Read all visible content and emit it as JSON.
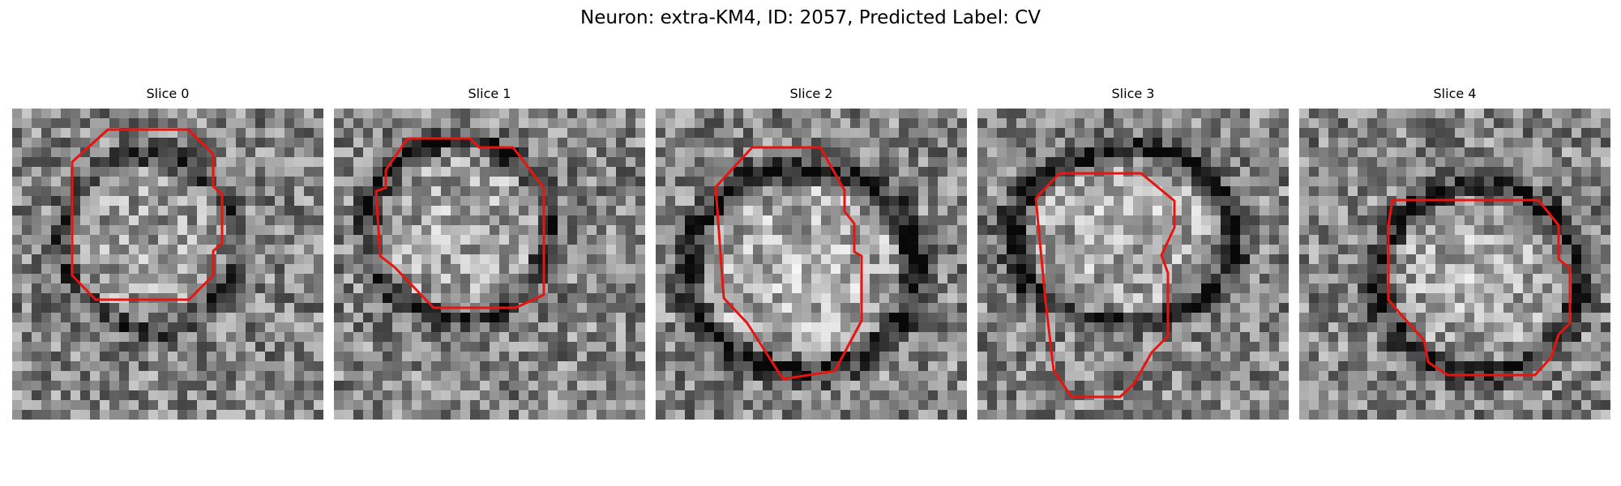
{
  "figure": {
    "title": "Neuron: extra-KM4, ID: 2057, Predicted Label: CV"
  },
  "panels": [
    {
      "title": "Slice 0"
    },
    {
      "title": "Slice 1"
    },
    {
      "title": "Slice 2"
    },
    {
      "title": "Slice 3"
    },
    {
      "title": "Slice 4"
    }
  ],
  "colors": {
    "contour": "#e8140f",
    "background": "#ffffff",
    "colormap": "grayscale"
  }
}
